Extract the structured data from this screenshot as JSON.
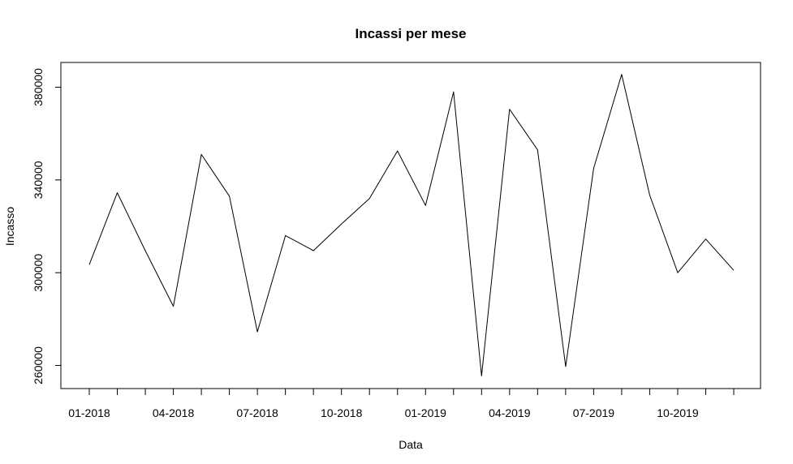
{
  "chart_data": {
    "type": "line",
    "title": "Incassi per mese",
    "xlabel": "Data",
    "ylabel": "Incasso",
    "x_categories": [
      "01-2018",
      "02-2018",
      "03-2018",
      "04-2018",
      "05-2018",
      "06-2018",
      "07-2018",
      "08-2018",
      "09-2018",
      "10-2018",
      "11-2018",
      "12-2018",
      "01-2019",
      "02-2019",
      "03-2019",
      "04-2019",
      "05-2019",
      "06-2019",
      "07-2019",
      "08-2019",
      "09-2019",
      "10-2019",
      "11-2019",
      "12-2019"
    ],
    "x_tick_labels": [
      {
        "index": 0,
        "label": "01-2018"
      },
      {
        "index": 3,
        "label": "04-2018"
      },
      {
        "index": 6,
        "label": "07-2018"
      },
      {
        "index": 9,
        "label": "10-2018"
      },
      {
        "index": 12,
        "label": "01-2019"
      },
      {
        "index": 15,
        "label": "04-2019"
      },
      {
        "index": 18,
        "label": "07-2019"
      },
      {
        "index": 21,
        "label": "10-2019"
      }
    ],
    "series": [
      {
        "name": "Incasso",
        "color": "#000000",
        "values": [
          303500,
          334500,
          309500,
          285500,
          351000,
          333000,
          274500,
          316000,
          309500,
          321000,
          332000,
          352500,
          329000,
          378000,
          255500,
          370500,
          353000,
          259500,
          345000,
          385500,
          333500,
          300000,
          314500,
          301000
        ]
      }
    ],
    "ylim": [
      251000,
      390000
    ],
    "y_ticks": [
      {
        "value": 260000,
        "label": "260000"
      },
      {
        "value": 300000,
        "label": "300000"
      },
      {
        "value": 340000,
        "label": "340000"
      },
      {
        "value": 380000,
        "label": "380000"
      }
    ],
    "grid": false,
    "box": true
  }
}
